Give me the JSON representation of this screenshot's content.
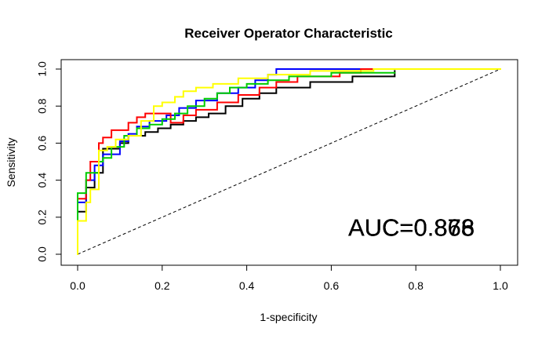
{
  "chart_data": {
    "type": "line",
    "title": "Receiver Operator Characteristic",
    "xlabel": "1-specificity",
    "ylabel": "Sensitivity",
    "xlim": [
      0,
      1
    ],
    "ylim": [
      0,
      1
    ],
    "xticks": [
      "0.0",
      "0.2",
      "0.4",
      "0.6",
      "0.8",
      "1.0"
    ],
    "yticks": [
      "0.0",
      "0.2",
      "0.4",
      "0.6",
      "0.8",
      "1.0"
    ],
    "grid": false,
    "legend": "none",
    "annotations": [
      {
        "text": "AUC=0.878",
        "color": "#000000"
      },
      {
        "text": "AUC=0.868",
        "color": "#000000"
      },
      {
        "text": "AUC=0.866",
        "color": "#000000"
      },
      {
        "text": "AUC=0.873",
        "color": "#000000"
      }
    ],
    "annotation_position": {
      "x": 0.64,
      "y": 0.1
    },
    "reference_line": {
      "x": [
        0,
        1
      ],
      "y": [
        0,
        1
      ],
      "style": "dashed",
      "color": "#000000"
    },
    "series": [
      {
        "color": "#000000",
        "points": [
          [
            0,
            0
          ],
          [
            0,
            0.18
          ],
          [
            0,
            0.23
          ],
          [
            0.02,
            0.23
          ],
          [
            0.02,
            0.36
          ],
          [
            0.04,
            0.36
          ],
          [
            0.04,
            0.44
          ],
          [
            0.06,
            0.44
          ],
          [
            0.06,
            0.57
          ],
          [
            0.1,
            0.57
          ],
          [
            0.1,
            0.6
          ],
          [
            0.12,
            0.6
          ],
          [
            0.12,
            0.64
          ],
          [
            0.16,
            0.64
          ],
          [
            0.16,
            0.66
          ],
          [
            0.19,
            0.66
          ],
          [
            0.19,
            0.68
          ],
          [
            0.22,
            0.68
          ],
          [
            0.22,
            0.7
          ],
          [
            0.25,
            0.7
          ],
          [
            0.25,
            0.72
          ],
          [
            0.28,
            0.72
          ],
          [
            0.28,
            0.74
          ],
          [
            0.31,
            0.74
          ],
          [
            0.31,
            0.76
          ],
          [
            0.35,
            0.76
          ],
          [
            0.35,
            0.8
          ],
          [
            0.39,
            0.8
          ],
          [
            0.39,
            0.84
          ],
          [
            0.43,
            0.84
          ],
          [
            0.43,
            0.87
          ],
          [
            0.47,
            0.87
          ],
          [
            0.47,
            0.9
          ],
          [
            0.55,
            0.9
          ],
          [
            0.55,
            0.93
          ],
          [
            0.65,
            0.93
          ],
          [
            0.65,
            0.96
          ],
          [
            0.75,
            0.96
          ],
          [
            0.75,
            0.99
          ]
        ]
      },
      {
        "color": "#0000ff",
        "points": [
          [
            0,
            0
          ],
          [
            0,
            0.2
          ],
          [
            0,
            0.28
          ],
          [
            0.02,
            0.28
          ],
          [
            0.02,
            0.4
          ],
          [
            0.04,
            0.4
          ],
          [
            0.04,
            0.48
          ],
          [
            0.06,
            0.48
          ],
          [
            0.06,
            0.54
          ],
          [
            0.1,
            0.54
          ],
          [
            0.1,
            0.61
          ],
          [
            0.12,
            0.61
          ],
          [
            0.12,
            0.65
          ],
          [
            0.14,
            0.65
          ],
          [
            0.14,
            0.69
          ],
          [
            0.17,
            0.69
          ],
          [
            0.17,
            0.72
          ],
          [
            0.21,
            0.72
          ],
          [
            0.21,
            0.75
          ],
          [
            0.24,
            0.75
          ],
          [
            0.24,
            0.79
          ],
          [
            0.28,
            0.79
          ],
          [
            0.28,
            0.83
          ],
          [
            0.33,
            0.83
          ],
          [
            0.33,
            0.87
          ],
          [
            0.38,
            0.87
          ],
          [
            0.38,
            0.9
          ],
          [
            0.42,
            0.9
          ],
          [
            0.42,
            0.94
          ],
          [
            0.45,
            0.94
          ],
          [
            0.45,
            0.97
          ],
          [
            0.47,
            0.97
          ],
          [
            0.47,
            1.0
          ],
          [
            0.75,
            1.0
          ]
        ]
      },
      {
        "color": "#ff0000",
        "points": [
          [
            0,
            0
          ],
          [
            0,
            0.24
          ],
          [
            0,
            0.3
          ],
          [
            0.02,
            0.3
          ],
          [
            0.02,
            0.4
          ],
          [
            0.03,
            0.4
          ],
          [
            0.03,
            0.5
          ],
          [
            0.05,
            0.5
          ],
          [
            0.05,
            0.6
          ],
          [
            0.06,
            0.6
          ],
          [
            0.06,
            0.63
          ],
          [
            0.08,
            0.63
          ],
          [
            0.08,
            0.67
          ],
          [
            0.12,
            0.67
          ],
          [
            0.12,
            0.71
          ],
          [
            0.14,
            0.71
          ],
          [
            0.14,
            0.74
          ],
          [
            0.16,
            0.74
          ],
          [
            0.16,
            0.76
          ],
          [
            0.22,
            0.76
          ],
          [
            0.22,
            0.71
          ],
          [
            0.25,
            0.71
          ],
          [
            0.25,
            0.75
          ],
          [
            0.28,
            0.75
          ],
          [
            0.28,
            0.78
          ],
          [
            0.33,
            0.78
          ],
          [
            0.33,
            0.82
          ],
          [
            0.38,
            0.82
          ],
          [
            0.38,
            0.86
          ],
          [
            0.43,
            0.86
          ],
          [
            0.43,
            0.9
          ],
          [
            0.47,
            0.9
          ],
          [
            0.47,
            0.93
          ],
          [
            0.52,
            0.93
          ],
          [
            0.52,
            0.96
          ],
          [
            0.62,
            0.96
          ],
          [
            0.62,
            0.98
          ],
          [
            0.67,
            0.98
          ],
          [
            0.67,
            1.0
          ],
          [
            0.75,
            1.0
          ]
        ]
      },
      {
        "color": "#00cc00",
        "points": [
          [
            0,
            0
          ],
          [
            0,
            0.2
          ],
          [
            0,
            0.33
          ],
          [
            0.02,
            0.33
          ],
          [
            0.02,
            0.44
          ],
          [
            0.05,
            0.44
          ],
          [
            0.05,
            0.5
          ],
          [
            0.06,
            0.5
          ],
          [
            0.06,
            0.52
          ],
          [
            0.08,
            0.52
          ],
          [
            0.08,
            0.58
          ],
          [
            0.11,
            0.58
          ],
          [
            0.11,
            0.64
          ],
          [
            0.14,
            0.64
          ],
          [
            0.14,
            0.68
          ],
          [
            0.17,
            0.68
          ],
          [
            0.17,
            0.7
          ],
          [
            0.2,
            0.7
          ],
          [
            0.2,
            0.73
          ],
          [
            0.23,
            0.73
          ],
          [
            0.23,
            0.76
          ],
          [
            0.26,
            0.76
          ],
          [
            0.26,
            0.8
          ],
          [
            0.3,
            0.8
          ],
          [
            0.3,
            0.84
          ],
          [
            0.33,
            0.84
          ],
          [
            0.33,
            0.87
          ],
          [
            0.36,
            0.87
          ],
          [
            0.36,
            0.9
          ],
          [
            0.4,
            0.9
          ],
          [
            0.4,
            0.92
          ],
          [
            0.45,
            0.92
          ],
          [
            0.45,
            0.94
          ],
          [
            0.5,
            0.94
          ],
          [
            0.5,
            0.96
          ],
          [
            0.6,
            0.96
          ],
          [
            0.6,
            0.98
          ],
          [
            0.75,
            0.98
          ]
        ]
      },
      {
        "color": "#ffff00",
        "points": [
          [
            0,
            0
          ],
          [
            0,
            0.18
          ],
          [
            0.02,
            0.18
          ],
          [
            0.02,
            0.28
          ],
          [
            0.03,
            0.28
          ],
          [
            0.03,
            0.35
          ],
          [
            0.05,
            0.35
          ],
          [
            0.05,
            0.56
          ],
          [
            0.07,
            0.56
          ],
          [
            0.07,
            0.58
          ],
          [
            0.09,
            0.58
          ],
          [
            0.09,
            0.62
          ],
          [
            0.12,
            0.62
          ],
          [
            0.12,
            0.64
          ],
          [
            0.15,
            0.64
          ],
          [
            0.15,
            0.72
          ],
          [
            0.18,
            0.72
          ],
          [
            0.18,
            0.8
          ],
          [
            0.2,
            0.8
          ],
          [
            0.2,
            0.82
          ],
          [
            0.23,
            0.82
          ],
          [
            0.23,
            0.85
          ],
          [
            0.25,
            0.85
          ],
          [
            0.25,
            0.88
          ],
          [
            0.28,
            0.88
          ],
          [
            0.28,
            0.9
          ],
          [
            0.32,
            0.9
          ],
          [
            0.32,
            0.92
          ],
          [
            0.38,
            0.92
          ],
          [
            0.38,
            0.95
          ],
          [
            0.45,
            0.95
          ],
          [
            0.45,
            0.97
          ],
          [
            0.55,
            0.97
          ],
          [
            0.55,
            0.99
          ],
          [
            0.7,
            0.99
          ],
          [
            0.7,
            1.0
          ],
          [
            1.0,
            1.0
          ]
        ]
      }
    ]
  }
}
